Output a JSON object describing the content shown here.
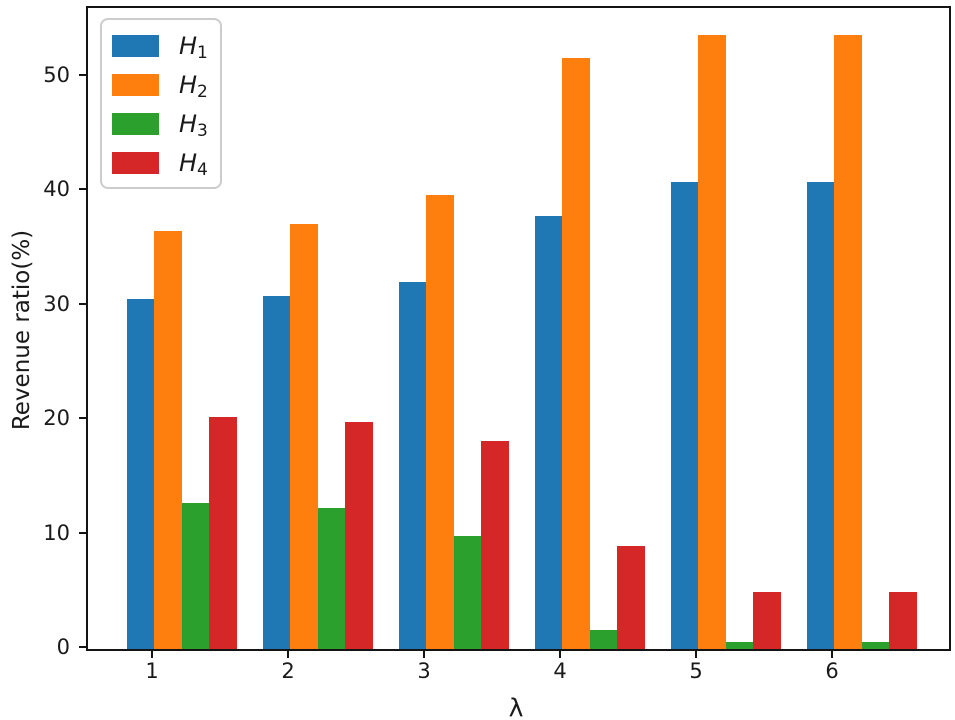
{
  "chart_data": {
    "type": "bar",
    "title": "",
    "xlabel": "λ",
    "ylabel": "Revenue ratio(%)",
    "categories": [
      "1",
      "2",
      "3",
      "4",
      "5",
      "6"
    ],
    "series": [
      {
        "name": "H1",
        "label_main": "H",
        "label_sub": "1",
        "color": "#1f77b4",
        "values": [
          30.6,
          30.8,
          32.1,
          37.8,
          40.8,
          40.8
        ]
      },
      {
        "name": "H2",
        "label_main": "H",
        "label_sub": "2",
        "color": "#ff7f0e",
        "values": [
          36.5,
          37.1,
          39.7,
          51.6,
          53.6,
          53.6
        ]
      },
      {
        "name": "H3",
        "label_main": "H",
        "label_sub": "3",
        "color": "#2ca02c",
        "values": [
          12.8,
          12.3,
          9.9,
          1.7,
          0.6,
          0.6
        ]
      },
      {
        "name": "H4",
        "label_main": "H",
        "label_sub": "4",
        "color": "#d62728",
        "values": [
          20.3,
          19.8,
          18.2,
          9.0,
          5.0,
          5.0
        ]
      }
    ],
    "yticks": [
      0,
      10,
      20,
      30,
      40,
      50
    ],
    "ylim": [
      0,
      56
    ],
    "grid": false,
    "legend_position": "upper-left",
    "spine_color": "#141414",
    "background_color": "#ffffff"
  }
}
